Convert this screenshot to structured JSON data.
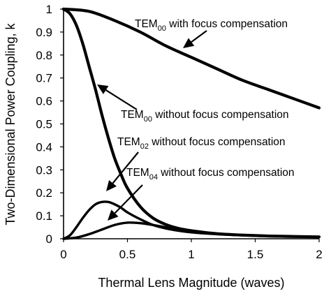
{
  "chart_data": {
    "type": "line",
    "xlabel": "Thermal Lens Magnitude (waves)",
    "ylabel": "Two-Dimensional Power Coupling, k",
    "xlim": [
      0,
      2
    ],
    "ylim": [
      0,
      1
    ],
    "x_ticks": [
      "0",
      "0.5",
      "1",
      "1.5",
      "2"
    ],
    "y_ticks": [
      "0",
      "0.1",
      "0.2",
      "0.3",
      "0.4",
      "0.5",
      "0.6",
      "0.7",
      "0.8",
      "0.9",
      "1"
    ],
    "grid": false,
    "legend": "none",
    "series": [
      {
        "x": [
          0,
          0.2,
          0.4,
          0.6,
          0.8,
          1.0,
          1.2,
          1.4,
          1.6,
          1.8,
          2.0
        ],
        "y": [
          1.0,
          0.99,
          0.95,
          0.9,
          0.84,
          0.79,
          0.74,
          0.69,
          0.65,
          0.61,
          0.57
        ]
      },
      {
        "x": [
          0,
          0.05,
          0.1,
          0.15,
          0.2,
          0.25,
          0.3,
          0.35,
          0.4,
          0.45,
          0.5,
          0.6,
          0.7,
          0.8,
          0.9,
          1.0,
          1.2,
          1.4,
          1.6,
          1.8,
          2.0
        ],
        "y": [
          1.0,
          0.98,
          0.93,
          0.85,
          0.75,
          0.65,
          0.54,
          0.44,
          0.35,
          0.28,
          0.22,
          0.14,
          0.09,
          0.062,
          0.045,
          0.035,
          0.022,
          0.016,
          0.012,
          0.01,
          0.008
        ]
      },
      {
        "x": [
          0,
          0.05,
          0.1,
          0.15,
          0.2,
          0.25,
          0.3,
          0.35,
          0.4,
          0.45,
          0.5,
          0.6,
          0.7,
          0.8,
          0.9,
          1.0,
          1.2,
          1.4,
          1.6,
          1.8,
          2.0
        ],
        "y": [
          0,
          0.015,
          0.05,
          0.09,
          0.125,
          0.15,
          0.16,
          0.16,
          0.15,
          0.135,
          0.115,
          0.085,
          0.06,
          0.045,
          0.035,
          0.028,
          0.02,
          0.015,
          0.011,
          0.009,
          0.008
        ]
      },
      {
        "x": [
          0,
          0.1,
          0.2,
          0.3,
          0.4,
          0.5,
          0.6,
          0.7,
          0.8,
          0.9,
          1.0,
          1.2,
          1.4,
          1.6,
          1.8,
          2.0
        ],
        "y": [
          0,
          0.005,
          0.02,
          0.04,
          0.06,
          0.07,
          0.068,
          0.06,
          0.05,
          0.04,
          0.032,
          0.022,
          0.016,
          0.012,
          0.01,
          0.008
        ]
      }
    ],
    "annotations": [
      {
        "main": "TEM",
        "sub": "00",
        "rest": " with focus compensation"
      },
      {
        "main": "TEM",
        "sub": "00",
        "rest": " without focus compensation"
      },
      {
        "main": "TEM",
        "sub": "02",
        "rest": " without focus compensation"
      },
      {
        "main": "TEM",
        "sub": "04",
        "rest": " without focus compensation"
      }
    ]
  }
}
